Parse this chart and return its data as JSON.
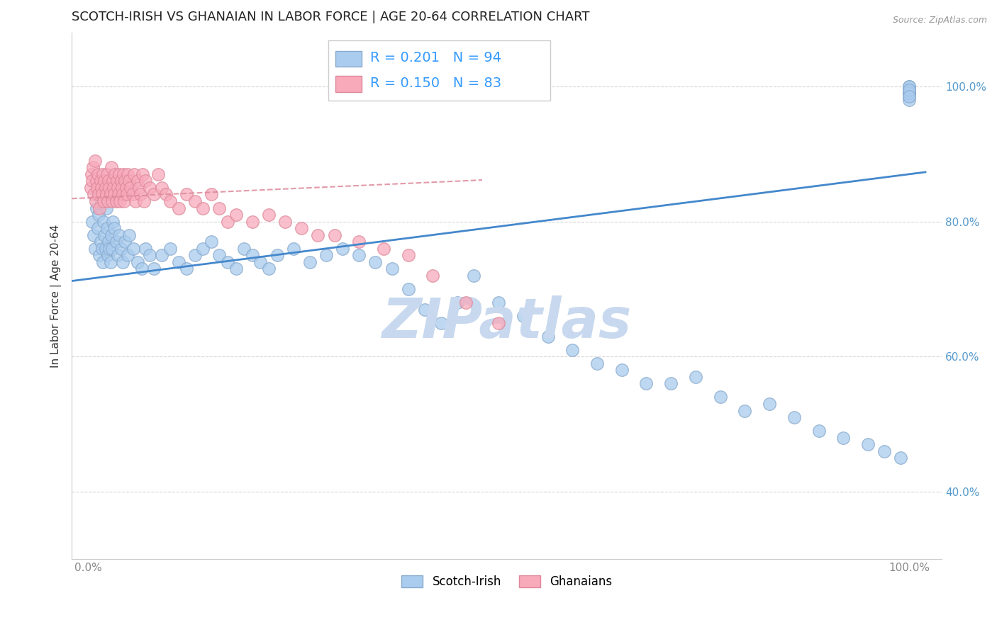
{
  "title": "SCOTCH-IRISH VS GHANAIAN IN LABOR FORCE | AGE 20-64 CORRELATION CHART",
  "source_text": "Source: ZipAtlas.com",
  "ylabel": "In Labor Force | Age 20-64",
  "blue_R": 0.201,
  "blue_N": 94,
  "pink_R": 0.15,
  "pink_N": 83,
  "blue_color": "#aaccee",
  "blue_edge": "#88aacc",
  "pink_color": "#f8aabb",
  "pink_edge": "#dd8899",
  "blue_line_color": "#4488cc",
  "pink_line_color": "#dd8899",
  "legend_r_color": "#3399ff",
  "background_color": "#ffffff",
  "grid_color": "#cccccc",
  "watermark_color": "#c8d8ee",
  "tick_color_y": "#5599cc",
  "tick_color_x": "#888888",
  "blue_line_intercept": 0.715,
  "blue_line_slope": 0.155,
  "pink_line_intercept": 0.835,
  "pink_line_slope": 0.055,
  "blue_x": [
    0.005,
    0.007,
    0.008,
    0.01,
    0.012,
    0.013,
    0.014,
    0.015,
    0.016,
    0.017,
    0.018,
    0.019,
    0.02,
    0.021,
    0.022,
    0.023,
    0.024,
    0.025,
    0.026,
    0.027,
    0.028,
    0.029,
    0.03,
    0.032,
    0.034,
    0.036,
    0.038,
    0.04,
    0.042,
    0.045,
    0.048,
    0.05,
    0.055,
    0.06,
    0.065,
    0.07,
    0.075,
    0.08,
    0.09,
    0.1,
    0.11,
    0.12,
    0.13,
    0.14,
    0.15,
    0.16,
    0.17,
    0.18,
    0.19,
    0.2,
    0.21,
    0.22,
    0.23,
    0.25,
    0.27,
    0.29,
    0.31,
    0.33,
    0.35,
    0.37,
    0.39,
    0.41,
    0.43,
    0.45,
    0.47,
    0.5,
    0.53,
    0.56,
    0.59,
    0.62,
    0.65,
    0.68,
    0.71,
    0.74,
    0.77,
    0.8,
    0.83,
    0.86,
    0.89,
    0.92,
    0.95,
    0.97,
    0.99,
    1.0,
    1.0,
    1.0,
    1.0,
    1.0,
    1.0,
    1.0,
    1.0,
    1.0,
    1.0,
    1.0
  ],
  "blue_y": [
    0.8,
    0.78,
    0.76,
    0.82,
    0.79,
    0.81,
    0.75,
    0.77,
    0.83,
    0.76,
    0.74,
    0.8,
    0.78,
    0.76,
    0.82,
    0.79,
    0.75,
    0.77,
    0.76,
    0.74,
    0.78,
    0.76,
    0.8,
    0.79,
    0.77,
    0.75,
    0.78,
    0.76,
    0.74,
    0.77,
    0.75,
    0.78,
    0.76,
    0.74,
    0.73,
    0.76,
    0.75,
    0.73,
    0.75,
    0.76,
    0.74,
    0.73,
    0.75,
    0.76,
    0.77,
    0.75,
    0.74,
    0.73,
    0.76,
    0.75,
    0.74,
    0.73,
    0.75,
    0.76,
    0.74,
    0.75,
    0.76,
    0.75,
    0.74,
    0.73,
    0.7,
    0.67,
    0.65,
    0.68,
    0.72,
    0.68,
    0.66,
    0.63,
    0.61,
    0.59,
    0.58,
    0.56,
    0.56,
    0.57,
    0.54,
    0.52,
    0.53,
    0.51,
    0.49,
    0.48,
    0.47,
    0.46,
    0.45,
    1.0,
    0.99,
    0.995,
    0.985,
    0.99,
    0.995,
    0.98,
    1.0,
    0.99,
    0.995,
    0.985
  ],
  "pink_x": [
    0.003,
    0.004,
    0.005,
    0.006,
    0.007,
    0.008,
    0.009,
    0.01,
    0.011,
    0.012,
    0.013,
    0.014,
    0.015,
    0.016,
    0.017,
    0.018,
    0.019,
    0.02,
    0.021,
    0.022,
    0.023,
    0.024,
    0.025,
    0.026,
    0.027,
    0.028,
    0.029,
    0.03,
    0.031,
    0.032,
    0.033,
    0.034,
    0.035,
    0.036,
    0.037,
    0.038,
    0.039,
    0.04,
    0.041,
    0.042,
    0.043,
    0.044,
    0.045,
    0.046,
    0.047,
    0.048,
    0.05,
    0.052,
    0.054,
    0.056,
    0.058,
    0.06,
    0.062,
    0.064,
    0.066,
    0.068,
    0.07,
    0.075,
    0.08,
    0.085,
    0.09,
    0.095,
    0.1,
    0.11,
    0.12,
    0.13,
    0.14,
    0.15,
    0.16,
    0.17,
    0.18,
    0.2,
    0.22,
    0.24,
    0.26,
    0.28,
    0.3,
    0.33,
    0.36,
    0.39,
    0.42,
    0.46,
    0.5
  ],
  "pink_y": [
    0.85,
    0.87,
    0.86,
    0.88,
    0.84,
    0.89,
    0.83,
    0.86,
    0.85,
    0.87,
    0.84,
    0.82,
    0.86,
    0.85,
    0.84,
    0.87,
    0.83,
    0.86,
    0.85,
    0.84,
    0.87,
    0.83,
    0.86,
    0.85,
    0.84,
    0.88,
    0.83,
    0.86,
    0.85,
    0.84,
    0.87,
    0.83,
    0.86,
    0.85,
    0.84,
    0.87,
    0.83,
    0.86,
    0.85,
    0.84,
    0.87,
    0.83,
    0.86,
    0.85,
    0.84,
    0.87,
    0.86,
    0.85,
    0.84,
    0.87,
    0.83,
    0.86,
    0.85,
    0.84,
    0.87,
    0.83,
    0.86,
    0.85,
    0.84,
    0.87,
    0.85,
    0.84,
    0.83,
    0.82,
    0.84,
    0.83,
    0.82,
    0.84,
    0.82,
    0.8,
    0.81,
    0.8,
    0.81,
    0.8,
    0.79,
    0.78,
    0.78,
    0.77,
    0.76,
    0.75,
    0.72,
    0.68,
    0.65
  ]
}
